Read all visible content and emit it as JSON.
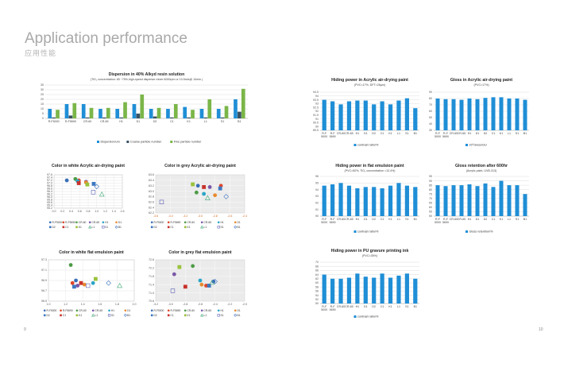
{
  "page": {
    "title": "Application performance",
    "subtitle": "应用性能",
    "page_left": "9",
    "page_right": "10"
  },
  "chart_data": [
    {
      "id": "dispersion",
      "type": "bar",
      "title": "Dispersion in 40% Alkyd resin solution",
      "subtitle": "(TiO₂ concentration: 65 ~75%,high-speed disperser mixer:4000rpm or 10.5m/s@ 10min )",
      "categories": [
        "R-F5000",
        "R-F5690",
        "CR-60",
        "CR-65",
        "H1",
        "D1",
        "D2",
        "C1",
        "K1",
        "L1",
        "S1",
        "B1"
      ],
      "ylim": [
        0,
        35
      ],
      "yticks": [
        0,
        5,
        10,
        15,
        20,
        25,
        30,
        35
      ],
      "series": [
        {
          "name": "Dispersion/um",
          "color": "#1f8ed6",
          "values": [
            10,
            15,
            15,
            10,
            10,
            15,
            10,
            10,
            12,
            10,
            10,
            20
          ]
        },
        {
          "name": "Coarse particle number",
          "color": "#3a5263",
          "values": [
            1,
            3,
            1,
            1,
            1,
            5,
            2,
            1,
            1,
            1,
            1,
            7
          ]
        },
        {
          "name": "Fine  particle number",
          "color": "#7ab648",
          "values": [
            9,
            16,
            11,
            11,
            17,
            25,
            11,
            15,
            9,
            20,
            13,
            31
          ]
        }
      ]
    },
    {
      "id": "hiding_acrylic",
      "type": "bar",
      "title": "Hiding power in Acrylic air-drying paint",
      "subtitle": "(PVC=17%, DFT=26μm)",
      "categories": [
        "R-F\n5000",
        "R-F\n5690",
        "CR-60",
        "CR-65",
        "H1",
        "D1",
        "D2",
        "C1",
        "K1",
        "L1",
        "S1",
        "B1"
      ],
      "ylim": [
        89.5,
        94.5
      ],
      "yticks": [
        89.5,
        90,
        90.5,
        91,
        91.5,
        92,
        92.5,
        93,
        93.5,
        94,
        94.5
      ],
      "series": [
        {
          "name": "contrast ratio/%",
          "color": "#1f8ed6",
          "values": [
            93.5,
            93.3,
            92.9,
            93.3,
            93.4,
            93.4,
            92.9,
            93.3,
            92.9,
            93.4,
            93.7,
            92.4
          ]
        }
      ]
    },
    {
      "id": "gloss_acrylic",
      "type": "bar",
      "title": "Gloss in Acrylic air-drying paint",
      "subtitle": "(PVC=17%)",
      "categories": [
        "R-F\n5000",
        "R-F\n5690",
        "CR-60",
        "CR-65",
        "H1",
        "D1",
        "D2",
        "C1",
        "K1",
        "L1",
        "S1",
        "B1"
      ],
      "ylim": [
        30,
        90
      ],
      "yticks": [
        30,
        40,
        50,
        60,
        70,
        80,
        90
      ],
      "series": [
        {
          "name": "20°Gloss/GU",
          "color": "#1f8ed6",
          "values": [
            80,
            79,
            79,
            78,
            80,
            79,
            81,
            82,
            82,
            80,
            80,
            78
          ]
        }
      ]
    },
    {
      "id": "hiding_emulsion",
      "type": "bar",
      "title": "Hiding power in flat emulsion paint",
      "subtitle": "(PVC=50%, TiO₂ concentration =13.4%)",
      "categories": [
        "R-F\n5000",
        "R-F\n5690",
        "CR-60",
        "CR-65",
        "H1",
        "D1",
        "D2",
        "C1",
        "K1",
        "L1",
        "S1",
        "B1"
      ],
      "ylim": [
        90,
        96
      ],
      "yticks": [
        90,
        91,
        92,
        93,
        94,
        95,
        96
      ],
      "series": [
        {
          "name": "contrast ratio/%",
          "color": "#1f8ed6",
          "values": [
            94.6,
            94.8,
            95.0,
            94.6,
            94.2,
            94.4,
            94.4,
            94.2,
            94.6,
            95.0,
            94.6,
            94.4
          ]
        }
      ]
    },
    {
      "id": "gloss_retention",
      "type": "bar",
      "title": "Gloss retention after 600hr",
      "subtitle": "(Acrylic paint, UVB-313)",
      "categories": [
        "R-F\n5000",
        "R-F\n5690",
        "CR-60",
        "CR-65",
        "H1",
        "D1",
        "D2",
        "C1",
        "K1",
        "L1",
        "S1",
        "B1"
      ],
      "ylim": [
        50,
        95
      ],
      "yticks": [
        50,
        55,
        60,
        65,
        70,
        75,
        80,
        85,
        90,
        95
      ],
      "series": [
        {
          "name": "Gloss  retention/%",
          "color": "#1f8ed6",
          "values": [
            85,
            84,
            85,
            85,
            86,
            84,
            87,
            83,
            90,
            85,
            85,
            75
          ]
        }
      ]
    },
    {
      "id": "hiding_ink",
      "type": "bar",
      "title": "Hiding power in PU gravure printing ink",
      "subtitle": "(PVC=35%)",
      "categories": [
        "R-F\n5000",
        "R-F\n5690",
        "CR-60",
        "CR-65",
        "H1",
        "D1",
        "D2",
        "C1",
        "K1",
        "L1",
        "S1",
        "B1"
      ],
      "ylim": [
        50,
        70
      ],
      "yticks": [
        50,
        52,
        54,
        56,
        58,
        60,
        62,
        64,
        66,
        68,
        70
      ],
      "series": [
        {
          "name": "contrast ratio/%",
          "color": "#1f8ed6",
          "values": [
            64,
            62,
            62,
            62.5,
            64.5,
            63,
            62.5,
            64.5,
            62.5,
            63.5,
            64.5,
            62
          ]
        }
      ]
    },
    {
      "id": "color_white_acrylic",
      "type": "scatter",
      "title": "Color in white Acrylic air-drying paint",
      "xlim": [
        0,
        1.6
      ],
      "xticks": [
        "0.0",
        "0.2",
        "0.4",
        "0.6",
        "0.8",
        "1.0",
        "1.2",
        "1.4",
        "1.6"
      ],
      "ylim": [
        95.2,
        97.6
      ],
      "yticks": [
        "95.2",
        "95.4",
        "95.6",
        "95.8",
        "96.0",
        "96.2",
        "96.4",
        "96.6",
        "96.8",
        "97.0",
        "97.2",
        "97.4",
        "97.6"
      ],
      "points": [
        {
          "name": "R-F5000",
          "x": 0.3,
          "y": 97.2
        },
        {
          "name": "R-F5690",
          "x": 0.58,
          "y": 97.2
        },
        {
          "name": "CR-60",
          "x": 0.5,
          "y": 97.3
        },
        {
          "name": "CR-65",
          "x": 0.75,
          "y": 97.1
        },
        {
          "name": "H1",
          "x": 0.55,
          "y": 97.15
        },
        {
          "name": "D1",
          "x": 0.75,
          "y": 97.05
        },
        {
          "name": "D2",
          "x": 0.93,
          "y": 96.95
        },
        {
          "name": "C1",
          "x": 0.58,
          "y": 97.0
        },
        {
          "name": "K1",
          "x": 0.78,
          "y": 96.9
        },
        {
          "name": "L1",
          "x": 1.12,
          "y": 96.2
        },
        {
          "name": "S1",
          "x": 0.92,
          "y": 96.35
        },
        {
          "name": "B1",
          "x": 1.0,
          "y": 96.75
        }
      ]
    },
    {
      "id": "color_grey_acrylic",
      "type": "scatter",
      "title": "Color in grey Acrylic air-drying paint",
      "xlim": [
        -3.6,
        -2.4
      ],
      "xticks": [
        "-3.6",
        "-3.4",
        "-3.2",
        "-3.0",
        "-2.8",
        "-2.6",
        "-2.4"
      ],
      "ylim": [
        62.2,
        63.6
      ],
      "yticks": [
        "62.2",
        "62.4",
        "62.6",
        "62.8",
        "63.0",
        "63.2",
        "63.4",
        "63.6"
      ],
      "points": [
        {
          "name": "R-F5000",
          "x": -3.03,
          "y": 63.2
        },
        {
          "name": "R-F5690",
          "x": -2.72,
          "y": 63.2
        },
        {
          "name": "CR-60",
          "x": -3.05,
          "y": 62.95
        },
        {
          "name": "CR-65",
          "x": -2.87,
          "y": 63.15
        },
        {
          "name": "H1",
          "x": -2.95,
          "y": 62.9
        },
        {
          "name": "D1",
          "x": -2.8,
          "y": 62.85
        },
        {
          "name": "D2",
          "x": -2.73,
          "y": 63.1
        },
        {
          "name": "C1",
          "x": -2.95,
          "y": 63.15
        },
        {
          "name": "K1",
          "x": -3.1,
          "y": 63.25
        },
        {
          "name": "L1",
          "x": -2.9,
          "y": 62.75
        },
        {
          "name": "S1",
          "x": -3.52,
          "y": 62.6
        },
        {
          "name": "B1",
          "x": -2.65,
          "y": 62.8
        }
      ]
    },
    {
      "id": "color_white_emulsion",
      "type": "scatter",
      "title": "Color in white flat emulsion paint",
      "xlim": [
        1.0,
        2.0
      ],
      "xticks": [
        "1.0",
        "1.2",
        "1.4",
        "1.6",
        "1.8",
        "2.0"
      ],
      "ylim": [
        96.5,
        97.3
      ],
      "yticks": [
        "96.5",
        "96.7",
        "96.9",
        "97.1",
        "97.3"
      ],
      "points": [
        {
          "name": "R-F5000",
          "x": 1.32,
          "y": 96.9
        },
        {
          "name": "R-F5690",
          "x": 1.28,
          "y": 96.85
        },
        {
          "name": "CR-60",
          "x": 1.26,
          "y": 97.2
        },
        {
          "name": "CR-65",
          "x": 1.34,
          "y": 96.8
        },
        {
          "name": "H1",
          "x": 1.52,
          "y": 96.85
        },
        {
          "name": "D1",
          "x": 1.42,
          "y": 96.82
        },
        {
          "name": "D2",
          "x": 1.3,
          "y": 96.78
        },
        {
          "name": "C1",
          "x": 1.38,
          "y": 96.85
        },
        {
          "name": "K1",
          "x": 1.55,
          "y": 96.93
        },
        {
          "name": "L1",
          "x": 1.83,
          "y": 96.8
        },
        {
          "name": "S1",
          "x": 1.46,
          "y": 96.8
        },
        {
          "name": "B1",
          "x": 1.7,
          "y": 96.85
        }
      ]
    },
    {
      "id": "color_grey_emulsion",
      "type": "scatter",
      "title": "Color in grey flat emulsion paint",
      "xlim": [
        -3.2,
        -2.0
      ],
      "xticks": [
        "-3.2",
        "-3.0",
        "-2.8",
        "-2.6",
        "-2.4",
        "-2.2",
        "-2.0"
      ],
      "ylim": [
        70.6,
        72.6
      ],
      "yticks": [
        "70.6",
        "71.0",
        "71.4",
        "71.8",
        "72.2",
        "72.6"
      ],
      "points": [
        {
          "name": "R-F5000",
          "x": -2.42,
          "y": 71.55
        },
        {
          "name": "R-F5690",
          "x": -2.52,
          "y": 71.35
        },
        {
          "name": "CR-60",
          "x": -2.7,
          "y": 72.3
        },
        {
          "name": "CR-65",
          "x": -2.95,
          "y": 71.9
        },
        {
          "name": "H1",
          "x": -2.6,
          "y": 71.6
        },
        {
          "name": "D1",
          "x": -2.58,
          "y": 71.4
        },
        {
          "name": "D2",
          "x": -2.48,
          "y": 71.35
        },
        {
          "name": "C1",
          "x": -2.8,
          "y": 71.3
        },
        {
          "name": "K1",
          "x": -2.88,
          "y": 72.25
        },
        {
          "name": "L1",
          "x": -2.44,
          "y": 71.5
        },
        {
          "name": "S1",
          "x": -2.97,
          "y": 71.1
        },
        {
          "name": "B1",
          "x": -2.4,
          "y": 71.55
        }
      ]
    }
  ],
  "scatter_legend": [
    {
      "name": "R-F5000",
      "shape": "circle",
      "color": "#3a6fb7"
    },
    {
      "name": "R-F5690",
      "shape": "circle",
      "color": "#e0452a"
    },
    {
      "name": "CR-60",
      "shape": "circle",
      "color": "#4d9b46"
    },
    {
      "name": "CR-65",
      "shape": "circle",
      "color": "#7b57a8"
    },
    {
      "name": "H1",
      "shape": "circle",
      "color": "#2aa5c8"
    },
    {
      "name": "D1",
      "shape": "circle",
      "color": "#e88a2e"
    },
    {
      "name": "D2",
      "shape": "square",
      "color": "#3d78c2"
    },
    {
      "name": "C1",
      "shape": "square",
      "color": "#c8322a"
    },
    {
      "name": "K1",
      "shape": "square",
      "color": "#9ac23c"
    },
    {
      "name": "L1",
      "shape": "triangle",
      "color": "#3aa874"
    },
    {
      "name": "S1",
      "shape": "square-open",
      "color": "#5b5fb5"
    },
    {
      "name": "B1",
      "shape": "diamond-open",
      "color": "#3c72c0"
    }
  ]
}
